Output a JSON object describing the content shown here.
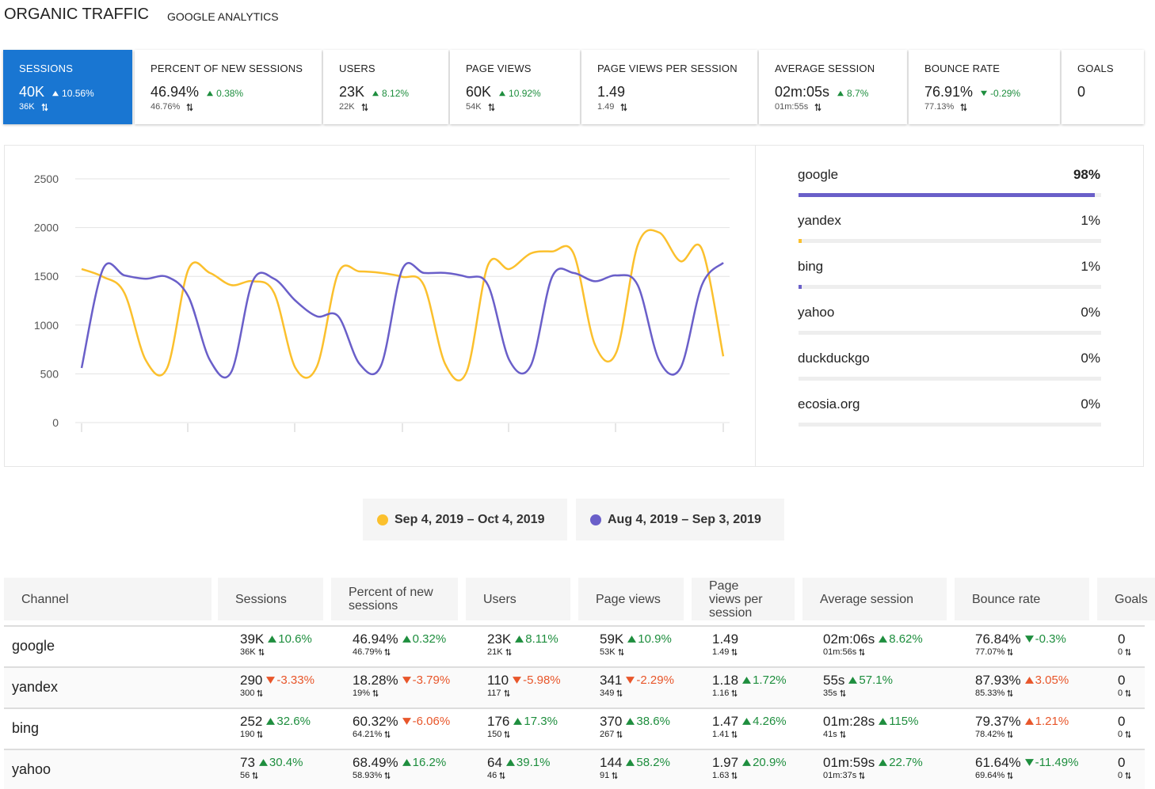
{
  "header": {
    "title": "ORGANIC TRAFFIC",
    "subtitle": "GOOGLE ANALYTICS"
  },
  "kpis": [
    {
      "label": "SESSIONS",
      "value": "40K",
      "change": "10.56%",
      "previous": "36K",
      "selected": true
    },
    {
      "label": "PERCENT OF NEW SESSIONS",
      "value": "46.94%",
      "change": "0.38%",
      "previous": "46.76%"
    },
    {
      "label": "USERS",
      "value": "23K",
      "change": "8.12%",
      "previous": "22K"
    },
    {
      "label": "PAGE VIEWS",
      "value": "60K",
      "change": "10.92%",
      "previous": "54K"
    },
    {
      "label": "PAGE VIEWS PER SESSION",
      "value": "1.49",
      "previous": "1.49"
    },
    {
      "label": "AVERAGE SESSION",
      "value": "02m:05s",
      "change": "8.7%",
      "previous": "01m:55s"
    },
    {
      "label": "BOUNCE RATE",
      "value": "76.91%",
      "change": "-0.29%",
      "previous": "77.13%",
      "lower_is_better": true
    },
    {
      "label": "GOALS",
      "value": "0"
    }
  ],
  "chart_data": {
    "type": "line",
    "categories": [
      null,
      null,
      null,
      null,
      null,
      null,
      null,
      null,
      null,
      null,
      null,
      null,
      null,
      null,
      null,
      null,
      null,
      null,
      null,
      null,
      null,
      null,
      null,
      null,
      null,
      null,
      null,
      null,
      null,
      null,
      null
    ],
    "series": [
      {
        "name": "Sep 4, 2019 – Oct 4, 2019",
        "color": "#fbc02d",
        "values": [
          1575,
          1495,
          1330,
          640,
          560,
          1575,
          1535,
          1410,
          1450,
          1330,
          560,
          575,
          1535,
          1550,
          1535,
          1495,
          1410,
          600,
          520,
          1615,
          1575,
          1735,
          1755,
          1735,
          800,
          720,
          1820,
          1950,
          1655,
          1780,
          680
        ]
      },
      {
        "name": "Aug 4, 2019 – Sep 3, 2019",
        "color": "#6a5fc9",
        "values": [
          560,
          1575,
          1510,
          1475,
          1495,
          1290,
          640,
          520,
          1450,
          1475,
          1250,
          1090,
          1090,
          600,
          585,
          1575,
          1535,
          1535,
          1495,
          1410,
          640,
          585,
          1495,
          1535,
          1450,
          1510,
          1410,
          640,
          560,
          1410,
          1640
        ]
      }
    ],
    "ylim": [
      0,
      2500
    ],
    "yticks": [
      0,
      500,
      1000,
      1500,
      2000,
      2500
    ],
    "grid": true
  },
  "sources": [
    {
      "name": "google",
      "share": 98,
      "share_label": "98%",
      "color": "#6a5fc9"
    },
    {
      "name": "yandex",
      "share": 1,
      "share_label": "1%",
      "color": "#fbc02d"
    },
    {
      "name": "bing",
      "share": 1,
      "share_label": "1%",
      "color": "#6a5fc9"
    },
    {
      "name": "yahoo",
      "share": 0,
      "share_label": "0%",
      "color": "#6a5fc9"
    },
    {
      "name": "duckduckgo",
      "share": 0,
      "share_label": "0%",
      "color": "#6a5fc9"
    },
    {
      "name": "ecosia.org",
      "share": 0,
      "share_label": "0%",
      "color": "#6a5fc9"
    }
  ],
  "table": {
    "columns": [
      {
        "label": "Channel"
      },
      {
        "label": "Sessions"
      },
      {
        "label": "Percent of new sessions"
      },
      {
        "label": "Users"
      },
      {
        "label": "Page views"
      },
      {
        "label": "Page views per session"
      },
      {
        "label": "Average session"
      },
      {
        "label": "Bounce rate",
        "lower_is_better": true
      },
      {
        "label": "Goals"
      }
    ],
    "rows": [
      {
        "channel": "google",
        "cells": [
          {
            "value": "39K",
            "change": "10.6%",
            "previous": "36K"
          },
          {
            "value": "46.94%",
            "change": "0.32%",
            "previous": "46.79%"
          },
          {
            "value": "23K",
            "change": "8.11%",
            "previous": "21K"
          },
          {
            "value": "59K",
            "change": "10.9%",
            "previous": "53K"
          },
          {
            "value": "1.49",
            "previous": "1.49"
          },
          {
            "value": "02m:06s",
            "change": "8.62%",
            "previous": "01m:56s"
          },
          {
            "value": "76.84%",
            "change": "-0.3%",
            "previous": "77.07%"
          },
          {
            "value": "0",
            "previous": "0"
          }
        ]
      },
      {
        "channel": "yandex",
        "cells": [
          {
            "value": "290",
            "change": "-3.33%",
            "previous": "300"
          },
          {
            "value": "18.28%",
            "change": "-3.79%",
            "previous": "19%"
          },
          {
            "value": "110",
            "change": "-5.98%",
            "previous": "117"
          },
          {
            "value": "341",
            "change": "-2.29%",
            "previous": "349"
          },
          {
            "value": "1.18",
            "change": "1.72%",
            "previous": "1.16"
          },
          {
            "value": "55s",
            "change": "57.1%",
            "previous": "35s"
          },
          {
            "value": "87.93%",
            "change": "3.05%",
            "previous": "85.33%"
          },
          {
            "value": "0",
            "previous": "0"
          }
        ]
      },
      {
        "channel": "bing",
        "cells": [
          {
            "value": "252",
            "change": "32.6%",
            "previous": "190"
          },
          {
            "value": "60.32%",
            "change": "-6.06%",
            "previous": "64.21%"
          },
          {
            "value": "176",
            "change": "17.3%",
            "previous": "150"
          },
          {
            "value": "370",
            "change": "38.6%",
            "previous": "267"
          },
          {
            "value": "1.47",
            "change": "4.26%",
            "previous": "1.41"
          },
          {
            "value": "01m:28s",
            "change": "115%",
            "previous": "41s"
          },
          {
            "value": "79.37%",
            "change": "1.21%",
            "previous": "78.42%"
          },
          {
            "value": "0",
            "previous": "0"
          }
        ]
      },
      {
        "channel": "yahoo",
        "cells": [
          {
            "value": "73",
            "change": "30.4%",
            "previous": "56"
          },
          {
            "value": "68.49%",
            "change": "16.2%",
            "previous": "58.93%"
          },
          {
            "value": "64",
            "change": "39.1%",
            "previous": "46"
          },
          {
            "value": "144",
            "change": "58.2%",
            "previous": "91"
          },
          {
            "value": "1.97",
            "change": "20.9%",
            "previous": "1.63"
          },
          {
            "value": "01m:59s",
            "change": "22.7%",
            "previous": "01m:37s"
          },
          {
            "value": "61.64%",
            "change": "-11.49%",
            "previous": "69.64%"
          },
          {
            "value": "0",
            "previous": "0"
          }
        ]
      }
    ]
  }
}
